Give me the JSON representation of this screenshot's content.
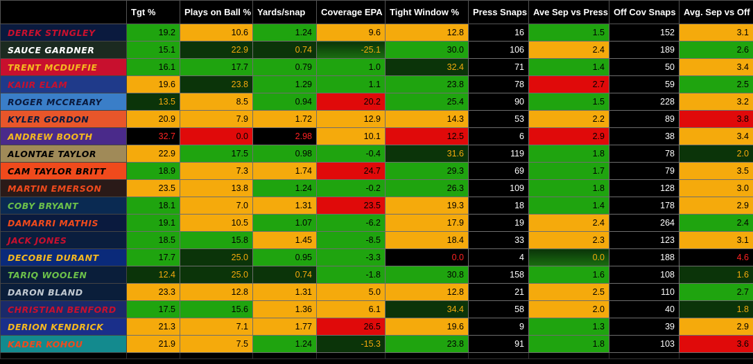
{
  "columns": [
    "",
    "Tgt %",
    "Plays on Ball %",
    "Yards/snap",
    "Coverage EPA",
    "Tight Window %",
    "Press Snaps",
    "Ave Sep vs Press",
    "Off Cov Snaps",
    "Avg. Sep vs Off"
  ],
  "rows": [
    {
      "name": "DEREK STINGLEY",
      "bg": "#0a1a3e",
      "fg": "#c8102e",
      "values": [
        "19.2",
        "10.6",
        "1.24",
        "9.6",
        "12.8",
        "16",
        "1.5",
        "152",
        "3.1"
      ],
      "styles": [
        "g",
        "y",
        "g",
        "y",
        "y",
        "k",
        "g",
        "k",
        "y"
      ]
    },
    {
      "name": "SAUCE GARDNER",
      "bg": "#1b2a20",
      "fg": "#ffffff",
      "values": [
        "15.1",
        "22.9",
        "0.74",
        "-25.1",
        "30.0",
        "106",
        "2.4",
        "189",
        "2.6"
      ],
      "styles": [
        "g",
        "d",
        "d",
        "dg",
        "g",
        "k",
        "y",
        "k",
        "g"
      ]
    },
    {
      "name": "TRENT MCDUFFIE",
      "bg": "#c8102e",
      "fg": "#f5b820",
      "values": [
        "16.1",
        "17.7",
        "0.79",
        "1.0",
        "32.4",
        "71",
        "1.4",
        "50",
        "3.4"
      ],
      "styles": [
        "g",
        "g",
        "g",
        "g",
        "d",
        "k",
        "g",
        "k",
        "y"
      ]
    },
    {
      "name": "KAIIR ELAM",
      "bg": "#1f3a8a",
      "fg": "#c8102e",
      "values": [
        "19.6",
        "23.8",
        "1.29",
        "1.1",
        "23.8",
        "78",
        "2.7",
        "59",
        "2.5"
      ],
      "styles": [
        "y",
        "d",
        "g",
        "g",
        "g",
        "k",
        "r",
        "k",
        "g"
      ]
    },
    {
      "name": "ROGER MCCREARY",
      "bg": "#3a7ec8",
      "fg": "#0a1a3e",
      "values": [
        "13.5",
        "8.5",
        "0.94",
        "20.2",
        "25.4",
        "90",
        "1.5",
        "228",
        "3.2"
      ],
      "styles": [
        "d",
        "y",
        "g",
        "r",
        "g",
        "k",
        "g",
        "k",
        "y"
      ]
    },
    {
      "name": "KYLER GORDON",
      "bg": "#e8562a",
      "fg": "#0a1a3e",
      "values": [
        "20.9",
        "7.9",
        "1.72",
        "12.9",
        "14.3",
        "53",
        "2.2",
        "89",
        "3.8"
      ],
      "styles": [
        "y",
        "y",
        "y",
        "y",
        "y",
        "k",
        "y",
        "k",
        "r"
      ]
    },
    {
      "name": "ANDREW BOOTH",
      "bg": "#4a2a8a",
      "fg": "#f5b820",
      "values": [
        "32.7",
        "0.0",
        "2.98",
        "10.1",
        "12.5",
        "6",
        "2.9",
        "38",
        "3.4"
      ],
      "styles": [
        "kr",
        "r",
        "kr",
        "y",
        "r",
        "k",
        "r",
        "k",
        "y"
      ]
    },
    {
      "name": "ALONTAE TAYLOR",
      "bg": "#a08a58",
      "fg": "#000000",
      "values": [
        "22.9",
        "17.5",
        "0.98",
        "-0.4",
        "31.6",
        "119",
        "1.8",
        "78",
        "2.0"
      ],
      "styles": [
        "y",
        "g",
        "g",
        "g",
        "d",
        "k",
        "g",
        "k",
        "d"
      ]
    },
    {
      "name": "CAM TAYLOR BRITT",
      "bg": "#f04a1c",
      "fg": "#000000",
      "values": [
        "18.9",
        "7.3",
        "1.74",
        "24.7",
        "29.3",
        "69",
        "1.7",
        "79",
        "3.5"
      ],
      "styles": [
        "g",
        "y",
        "y",
        "r",
        "g",
        "k",
        "g",
        "k",
        "y"
      ]
    },
    {
      "name": "MARTIN EMERSON",
      "bg": "#2a1a18",
      "fg": "#f04a1c",
      "values": [
        "23.5",
        "13.8",
        "1.24",
        "-0.2",
        "26.3",
        "109",
        "1.8",
        "128",
        "3.0"
      ],
      "styles": [
        "y",
        "y",
        "g",
        "g",
        "g",
        "k",
        "g",
        "k",
        "y"
      ]
    },
    {
      "name": "COBY BRYANT",
      "bg": "#0a2a52",
      "fg": "#6cc04a",
      "values": [
        "18.1",
        "7.0",
        "1.31",
        "23.5",
        "19.3",
        "18",
        "1.4",
        "178",
        "2.9"
      ],
      "styles": [
        "g",
        "y",
        "y",
        "r",
        "y",
        "k",
        "g",
        "k",
        "y"
      ]
    },
    {
      "name": "DAMARRI MATHIS",
      "bg": "#0a1a3e",
      "fg": "#f04a1c",
      "values": [
        "19.1",
        "10.5",
        "1.07",
        "-6.2",
        "17.9",
        "19",
        "2.4",
        "264",
        "2.4"
      ],
      "styles": [
        "g",
        "y",
        "g",
        "g",
        "y",
        "k",
        "y",
        "k",
        "g"
      ]
    },
    {
      "name": "JACK JONES",
      "bg": "#0a1e3e",
      "fg": "#c8102e",
      "values": [
        "18.5",
        "15.8",
        "1.45",
        "-8.5",
        "18.4",
        "33",
        "2.3",
        "123",
        "3.1"
      ],
      "styles": [
        "g",
        "g",
        "y",
        "g",
        "y",
        "k",
        "y",
        "k",
        "y"
      ]
    },
    {
      "name": "DECOBIE DURANT",
      "bg": "#0a2a7a",
      "fg": "#f5b820",
      "values": [
        "17.7",
        "25.0",
        "0.95",
        "-3.3",
        "0.0",
        "4",
        "0.0",
        "188",
        "4.6"
      ],
      "styles": [
        "g",
        "d",
        "g",
        "g",
        "kr",
        "k",
        "dg",
        "k",
        "kr"
      ]
    },
    {
      "name": "TARIQ WOOLEN",
      "bg": "#0a1e3a",
      "fg": "#6cc04a",
      "values": [
        "12.4",
        "25.0",
        "0.74",
        "-1.8",
        "30.8",
        "158",
        "1.6",
        "108",
        "1.6"
      ],
      "styles": [
        "d",
        "d",
        "d",
        "g",
        "g",
        "k",
        "g",
        "k",
        "d"
      ]
    },
    {
      "name": "DARON BLAND",
      "bg": "#0a1e3a",
      "fg": "#c0c8d0",
      "values": [
        "23.3",
        "12.8",
        "1.31",
        "5.0",
        "12.8",
        "21",
        "2.5",
        "110",
        "2.7"
      ],
      "styles": [
        "y",
        "y",
        "y",
        "y",
        "y",
        "k",
        "y",
        "k",
        "g"
      ]
    },
    {
      "name": "CHRISTIAN BENFORD",
      "bg": "#1a2a6a",
      "fg": "#c8102e",
      "values": [
        "17.5",
        "15.6",
        "1.36",
        "6.1",
        "34.4",
        "58",
        "2.0",
        "40",
        "1.8"
      ],
      "styles": [
        "g",
        "g",
        "y",
        "y",
        "d",
        "k",
        "y",
        "k",
        "d"
      ]
    },
    {
      "name": "DERION KENDRICK",
      "bg": "#1a2f8a",
      "fg": "#f5b820",
      "values": [
        "21.3",
        "7.1",
        "1.77",
        "26.5",
        "19.6",
        "9",
        "1.3",
        "39",
        "2.9"
      ],
      "styles": [
        "y",
        "y",
        "y",
        "r",
        "y",
        "k",
        "g",
        "k",
        "y"
      ]
    },
    {
      "name": "KADER KOHOU",
      "bg": "#138a8e",
      "fg": "#f04a1c",
      "values": [
        "21.9",
        "7.5",
        "1.24",
        "-15.3",
        "23.8",
        "91",
        "1.8",
        "103",
        "3.6"
      ],
      "styles": [
        "y",
        "y",
        "g",
        "d",
        "g",
        "k",
        "g",
        "k",
        "r"
      ]
    }
  ]
}
